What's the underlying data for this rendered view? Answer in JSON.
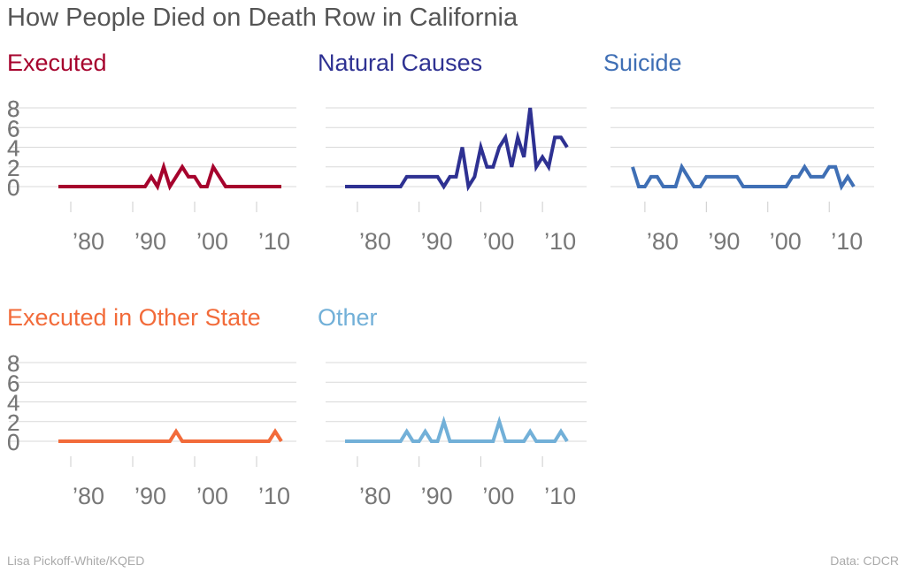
{
  "title": "How People Died on Death Row in California",
  "credit": "Lisa Pickoff-White/KQED",
  "source": "Data: CDCR",
  "chart_data": [
    {
      "type": "line",
      "title": "Executed",
      "color": "#a6032d",
      "ylim": [
        0,
        8
      ],
      "yticks": [
        0,
        2,
        4,
        6,
        8
      ],
      "xlim": [
        1978,
        2014
      ],
      "xticks": [
        1980,
        1990,
        2000,
        2010
      ],
      "xticklabels": [
        "’80",
        "’90",
        "’00",
        "’10"
      ],
      "x": [
        1978,
        1979,
        1980,
        1981,
        1982,
        1983,
        1984,
        1985,
        1986,
        1987,
        1988,
        1989,
        1990,
        1991,
        1992,
        1993,
        1994,
        1995,
        1996,
        1997,
        1998,
        1999,
        2000,
        2001,
        2002,
        2003,
        2004,
        2005,
        2006,
        2007,
        2008,
        2009,
        2010,
        2011,
        2012,
        2013,
        2014
      ],
      "y": [
        0,
        0,
        0,
        0,
        0,
        0,
        0,
        0,
        0,
        0,
        0,
        0,
        0,
        0,
        0,
        1,
        0,
        2,
        0,
        1,
        2,
        1,
        1,
        0,
        0,
        2,
        1,
        0,
        0,
        0,
        0,
        0,
        0,
        0,
        0,
        0,
        0
      ]
    },
    {
      "type": "line",
      "title": "Natural Causes",
      "color": "#2e3192",
      "ylim": [
        0,
        8
      ],
      "yticks": [
        0,
        2,
        4,
        6,
        8
      ],
      "xlim": [
        1978,
        2014
      ],
      "xticks": [
        1980,
        1990,
        2000,
        2010
      ],
      "xticklabels": [
        "’80",
        "’90",
        "’00",
        "’10"
      ],
      "x": [
        1978,
        1979,
        1980,
        1981,
        1982,
        1983,
        1984,
        1985,
        1986,
        1987,
        1988,
        1989,
        1990,
        1991,
        1992,
        1993,
        1994,
        1995,
        1996,
        1997,
        1998,
        1999,
        2000,
        2001,
        2002,
        2003,
        2004,
        2005,
        2006,
        2007,
        2008,
        2009,
        2010,
        2011,
        2012,
        2013,
        2014
      ],
      "y": [
        0,
        0,
        0,
        0,
        0,
        0,
        0,
        0,
        0,
        0,
        1,
        1,
        1,
        1,
        1,
        1,
        0,
        1,
        1,
        4,
        0,
        1,
        4,
        2,
        2,
        4,
        5,
        2,
        5,
        3,
        8,
        2,
        3,
        2,
        5,
        5,
        4
      ]
    },
    {
      "type": "line",
      "title": "Suicide",
      "color": "#3f6fb5",
      "ylim": [
        0,
        8
      ],
      "yticks": [
        0,
        2,
        4,
        6,
        8
      ],
      "xlim": [
        1978,
        2014
      ],
      "xticks": [
        1980,
        1990,
        2000,
        2010
      ],
      "xticklabels": [
        "’80",
        "’90",
        "’00",
        "’10"
      ],
      "x": [
        1978,
        1979,
        1980,
        1981,
        1982,
        1983,
        1984,
        1985,
        1986,
        1987,
        1988,
        1989,
        1990,
        1991,
        1992,
        1993,
        1994,
        1995,
        1996,
        1997,
        1998,
        1999,
        2000,
        2001,
        2002,
        2003,
        2004,
        2005,
        2006,
        2007,
        2008,
        2009,
        2010,
        2011,
        2012,
        2013,
        2014
      ],
      "y": [
        2,
        0,
        0,
        1,
        1,
        0,
        0,
        0,
        2,
        1,
        0,
        0,
        1,
        1,
        1,
        1,
        1,
        1,
        0,
        0,
        0,
        0,
        0,
        0,
        0,
        0,
        1,
        1,
        2,
        1,
        1,
        1,
        2,
        2,
        0,
        1,
        0
      ]
    },
    {
      "type": "line",
      "title": "Executed in Other State",
      "color": "#f26b3a",
      "ylim": [
        0,
        8
      ],
      "yticks": [
        0,
        2,
        4,
        6,
        8
      ],
      "xlim": [
        1978,
        2014
      ],
      "xticks": [
        1980,
        1990,
        2000,
        2010
      ],
      "xticklabels": [
        "’80",
        "’90",
        "’00",
        "’10"
      ],
      "x": [
        1978,
        1979,
        1980,
        1981,
        1982,
        1983,
        1984,
        1985,
        1986,
        1987,
        1988,
        1989,
        1990,
        1991,
        1992,
        1993,
        1994,
        1995,
        1996,
        1997,
        1998,
        1999,
        2000,
        2001,
        2002,
        2003,
        2004,
        2005,
        2006,
        2007,
        2008,
        2009,
        2010,
        2011,
        2012,
        2013,
        2014
      ],
      "y": [
        0,
        0,
        0,
        0,
        0,
        0,
        0,
        0,
        0,
        0,
        0,
        0,
        0,
        0,
        0,
        0,
        0,
        0,
        0,
        1,
        0,
        0,
        0,
        0,
        0,
        0,
        0,
        0,
        0,
        0,
        0,
        0,
        0,
        0,
        0,
        1,
        0
      ]
    },
    {
      "type": "line",
      "title": "Other",
      "color": "#72b0d8",
      "ylim": [
        0,
        8
      ],
      "yticks": [
        0,
        2,
        4,
        6,
        8
      ],
      "xlim": [
        1978,
        2014
      ],
      "xticks": [
        1980,
        1990,
        2000,
        2010
      ],
      "xticklabels": [
        "’80",
        "’90",
        "’00",
        "’10"
      ],
      "x": [
        1978,
        1979,
        1980,
        1981,
        1982,
        1983,
        1984,
        1985,
        1986,
        1987,
        1988,
        1989,
        1990,
        1991,
        1992,
        1993,
        1994,
        1995,
        1996,
        1997,
        1998,
        1999,
        2000,
        2001,
        2002,
        2003,
        2004,
        2005,
        2006,
        2007,
        2008,
        2009,
        2010,
        2011,
        2012,
        2013,
        2014
      ],
      "y": [
        0,
        0,
        0,
        0,
        0,
        0,
        0,
        0,
        0,
        0,
        1,
        0,
        0,
        1,
        0,
        0,
        2,
        0,
        0,
        0,
        0,
        0,
        0,
        0,
        0,
        2,
        0,
        0,
        0,
        0,
        1,
        0,
        0,
        0,
        0,
        1,
        0
      ]
    }
  ]
}
